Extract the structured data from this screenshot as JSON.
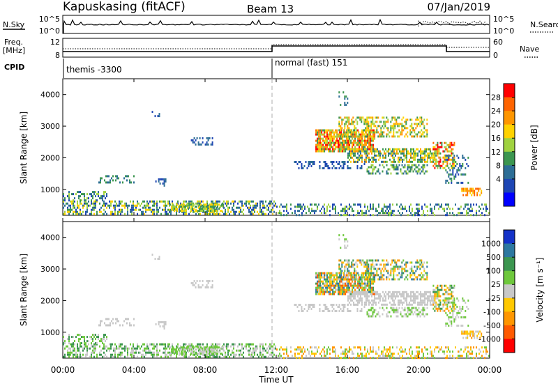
{
  "header": {
    "site": "Kapuskasing (fitACF)",
    "beam": "Beam 13",
    "date": "07/Jan/2019"
  },
  "noise_panel": {
    "left_label": "N.Sky",
    "right_label": "N.Search",
    "left_ticks": [
      "10^5",
      "10^0"
    ],
    "right_ticks": [
      "10^5",
      "10^0"
    ]
  },
  "freq_panel": {
    "left_label_1": "Freq.",
    "left_label_2": "[MHz]",
    "right_label": "Nave",
    "left_ticks": [
      "12",
      "8"
    ],
    "right_ticks": [
      "60",
      "0"
    ]
  },
  "cpid": {
    "label": "CPID",
    "modes": [
      {
        "name": "themis -3300",
        "start_hour": 0
      },
      {
        "name": "normal (fast) 151",
        "start_hour": 12
      }
    ]
  },
  "x_axis": {
    "label": "Time UT",
    "tick_labels": [
      "00:00",
      "04:00",
      "08:00",
      "12:00",
      "16:00",
      "20:00",
      "00:00"
    ],
    "tick_hours": [
      0,
      4,
      8,
      12,
      16,
      20,
      24
    ]
  },
  "power_panel": {
    "ylabel": "Slant Range [km]",
    "y_ticks": [
      "1000",
      "2000",
      "3000",
      "4000"
    ],
    "colorbar_label": "Power [dB]",
    "colorbar_ticks": [
      "28",
      "24",
      "20",
      "16",
      "12",
      "8",
      "4"
    ],
    "colorbar_colors": [
      "#ff0000",
      "#ff6400",
      "#ff9600",
      "#ffd200",
      "#a0d240",
      "#3c9650",
      "#2d6e96",
      "#1e46b4",
      "#0000ff"
    ]
  },
  "velocity_panel": {
    "ylabel": "Slant Range [km]",
    "y_ticks": [
      "1000",
      "2000",
      "3000",
      "4000"
    ],
    "colorbar_label": "Velocity [m s⁻¹]",
    "colorbar_ticks": [
      "1000",
      "500",
      "100",
      "25",
      "-25",
      "-100",
      "-500",
      "-1000"
    ],
    "colorbar_colors": [
      "#1432c8",
      "#2d78a0",
      "#3c9650",
      "#6ec83c",
      "#c8c8c8",
      "#ffc800",
      "#ff9600",
      "#ff5a00",
      "#ff0000"
    ]
  },
  "chart_data": {
    "type": "heatmap",
    "x_range_hours": [
      0,
      24
    ],
    "y_range_km": [
      180,
      4500
    ],
    "power_colors": [
      "#0000ff",
      "#1e46b4",
      "#2d6e96",
      "#3c9650",
      "#a0d240",
      "#ffd200",
      "#ff9600",
      "#ff6400",
      "#ff0000"
    ],
    "velocity_colors": [
      "#ff0000",
      "#ff5a00",
      "#ff9600",
      "#ffc800",
      "#c8c8c8",
      "#6ec83c",
      "#3c9650",
      "#2d78a0",
      "#1432c8"
    ],
    "regions": [
      {
        "t": [
          0,
          12
        ],
        "r": [
          200,
          650
        ],
        "density": 0.55,
        "p": [
          1,
          5
        ],
        "v": [
          4,
          6
        ]
      },
      {
        "t": [
          0,
          2.5
        ],
        "r": [
          650,
          950
        ],
        "density": 0.45,
        "p": [
          1,
          4
        ],
        "v": [
          4,
          6
        ]
      },
      {
        "t": [
          6,
          9
        ],
        "r": [
          300,
          550
        ],
        "density": 0.7,
        "p": [
          3,
          5
        ],
        "v": [
          4,
          5
        ]
      },
      {
        "t": [
          2,
          4
        ],
        "r": [
          1200,
          1450
        ],
        "density": 0.3,
        "p": [
          2,
          3
        ],
        "v": [
          4,
          4
        ]
      },
      {
        "t": [
          5.2,
          5.8
        ],
        "r": [
          1150,
          1350
        ],
        "density": 0.4,
        "p": [
          1,
          2
        ],
        "v": [
          4,
          4
        ]
      },
      {
        "t": [
          7.2,
          8.4
        ],
        "r": [
          2400,
          2650
        ],
        "density": 0.5,
        "p": [
          1,
          2
        ],
        "v": [
          4,
          4
        ]
      },
      {
        "t": [
          5,
          5.5
        ],
        "r": [
          3350,
          3550
        ],
        "density": 0.3,
        "p": [
          1,
          2
        ],
        "v": [
          4,
          4
        ]
      },
      {
        "t": [
          12,
          24
        ],
        "r": [
          180,
          550
        ],
        "density": 0.35,
        "p": [
          1,
          4
        ],
        "v": [
          2,
          5
        ]
      },
      {
        "t": [
          14.2,
          17.5
        ],
        "r": [
          2200,
          2900
        ],
        "density": 0.8,
        "p": [
          3,
          8
        ],
        "v": [
          1,
          7
        ]
      },
      {
        "t": [
          15.5,
          20.5
        ],
        "r": [
          2700,
          3300
        ],
        "density": 0.5,
        "p": [
          3,
          6
        ],
        "v": [
          2,
          7
        ]
      },
      {
        "t": [
          16,
          21
        ],
        "r": [
          1900,
          2300
        ],
        "density": 0.65,
        "p": [
          2,
          6
        ],
        "v": [
          4,
          4
        ]
      },
      {
        "t": [
          13,
          17
        ],
        "r": [
          1700,
          1900
        ],
        "density": 0.35,
        "p": [
          1,
          2
        ],
        "v": [
          4,
          4
        ]
      },
      {
        "t": [
          17,
          20.5
        ],
        "r": [
          1500,
          1800
        ],
        "density": 0.45,
        "p": [
          2,
          4
        ],
        "v": [
          4,
          5
        ]
      },
      {
        "t": [
          20.8,
          22
        ],
        "r": [
          1700,
          2500
        ],
        "density": 0.55,
        "p": [
          3,
          8
        ],
        "v": [
          2,
          6
        ]
      },
      {
        "t": [
          22.4,
          23.5
        ],
        "r": [
          850,
          1050
        ],
        "density": 0.6,
        "p": [
          5,
          7
        ],
        "v": [
          2,
          4
        ]
      },
      {
        "t": [
          21.5,
          22.8
        ],
        "r": [
          1200,
          2100
        ],
        "density": 0.35,
        "p": [
          1,
          3
        ],
        "v": [
          4,
          5
        ]
      },
      {
        "t": [
          15.5,
          16
        ],
        "r": [
          3700,
          4100
        ],
        "density": 0.3,
        "p": [
          2,
          3
        ],
        "v": [
          4,
          5
        ]
      }
    ]
  }
}
